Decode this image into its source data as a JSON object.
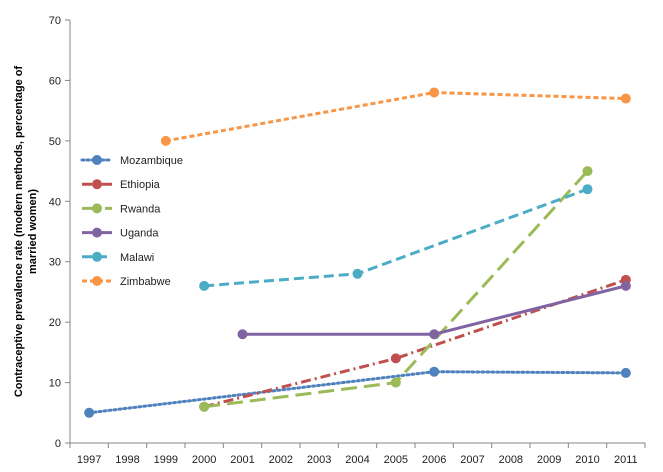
{
  "chart_data": {
    "type": "line",
    "title": "",
    "xlabel": "",
    "ylabel": "Contraceptive prevalence rate (modern methods, percentage of married women)",
    "ylabel_lines": [
      "Contraceptive prevalence rate (modern methods, percentage of",
      "married women)"
    ],
    "categories": [
      "1997",
      "1998",
      "1999",
      "2000",
      "2001",
      "2002",
      "2003",
      "2004",
      "2005",
      "2006",
      "2007",
      "2008",
      "2009",
      "2010",
      "2011"
    ],
    "ylim": [
      0,
      70
    ],
    "yticks": [
      0,
      10,
      20,
      30,
      40,
      50,
      60,
      70
    ],
    "grid": false,
    "legend_position": "left",
    "series": [
      {
        "name": "Mozambique",
        "color": "#4F81BD",
        "dash": "dotted",
        "points": [
          {
            "x": 1997,
            "y": 5
          },
          {
            "x": 2006,
            "y": 11.8
          },
          {
            "x": 2011,
            "y": 11.6
          }
        ]
      },
      {
        "name": "Ethiopia",
        "color": "#C0504D",
        "dash": "dashdot",
        "points": [
          {
            "x": 2000,
            "y": 6
          },
          {
            "x": 2005,
            "y": 14
          },
          {
            "x": 2011,
            "y": 27
          }
        ]
      },
      {
        "name": "Rwanda",
        "color": "#9BBB59",
        "dash": "longdash",
        "points": [
          {
            "x": 2000,
            "y": 6
          },
          {
            "x": 2005,
            "y": 10
          },
          {
            "x": 2010,
            "y": 45
          }
        ]
      },
      {
        "name": "Uganda",
        "color": "#8064A2",
        "dash": "solid",
        "points": [
          {
            "x": 2001,
            "y": 18
          },
          {
            "x": 2006,
            "y": 18
          },
          {
            "x": 2011,
            "y": 26
          }
        ]
      },
      {
        "name": "Malawi",
        "color": "#4BACC6",
        "dash": "dash",
        "points": [
          {
            "x": 2000,
            "y": 26
          },
          {
            "x": 2004,
            "y": 28
          },
          {
            "x": 2010,
            "y": 42
          }
        ]
      },
      {
        "name": "Zimbabwe",
        "color": "#F79646",
        "dash": "shortdash",
        "points": [
          {
            "x": 1999,
            "y": 50
          },
          {
            "x": 2006,
            "y": 58
          },
          {
            "x": 2011,
            "y": 57
          }
        ]
      }
    ]
  }
}
